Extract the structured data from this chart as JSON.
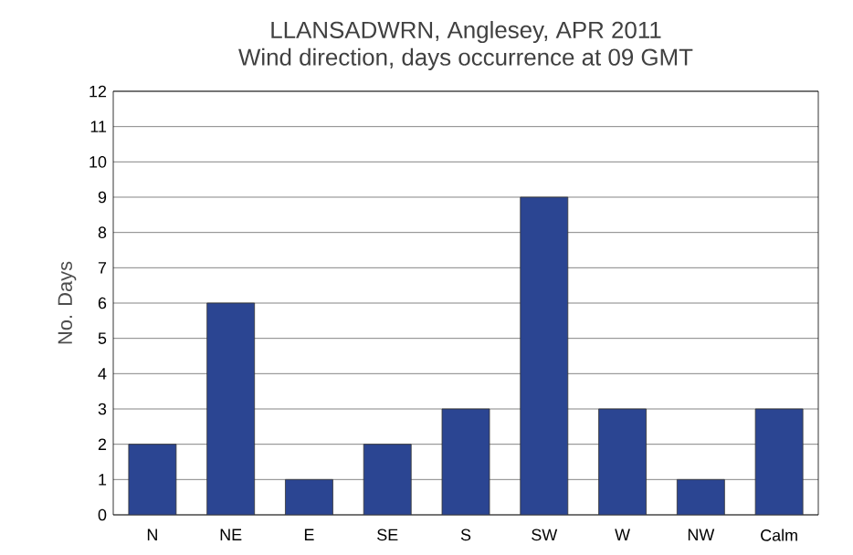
{
  "chart_data": {
    "type": "bar",
    "title": "LLANSADWRN, Anglesey, APR 2011",
    "subtitle": "Wind direction, days occurrence at 09 GMT",
    "ylabel": "No. Days",
    "categories": [
      "N",
      "NE",
      "E",
      "SE",
      "S",
      "SW",
      "W",
      "NW",
      "Calm"
    ],
    "values": [
      2,
      6,
      1,
      2,
      3,
      9,
      3,
      1,
      3
    ],
    "color": "#2b4592",
    "ylim": [
      0,
      12
    ],
    "yticks": [
      0,
      1,
      2,
      3,
      4,
      5,
      6,
      7,
      8,
      9,
      10,
      11,
      12
    ],
    "grid": "y"
  }
}
